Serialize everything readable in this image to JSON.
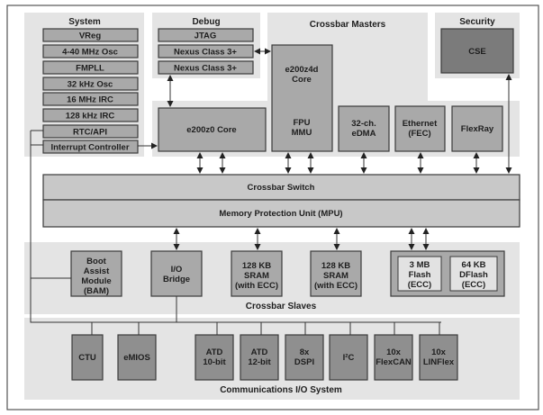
{
  "system": {
    "title": "System",
    "items": [
      "VReg",
      "4-40 MHz Osc",
      "FMPLL",
      "32 kHz Osc",
      "16 MHz IRC",
      "128 kHz IRC",
      "RTC/API",
      "Interrupt Controller"
    ]
  },
  "debug": {
    "title": "Debug",
    "items": [
      "JTAG",
      "Nexus Class 3+",
      "Nexus Class 3+"
    ]
  },
  "crossbar_masters": {
    "title": "Crossbar Masters",
    "e200z0": "e200z0 Core",
    "e200z4d_line1": "e200z4d",
    "e200z4d_line2": "Core",
    "e200z4d_line3": "FPU",
    "e200z4d_line4": "MMU",
    "edma_line1": "32-ch.",
    "edma_line2": "eDMA",
    "ethernet_line1": "Ethernet",
    "ethernet_line2": "(FEC)",
    "flexray": "FlexRay"
  },
  "security": {
    "title": "Security",
    "cse": "CSE"
  },
  "crossbar_switch": "Crossbar Switch",
  "mpu": "Memory Protection Unit (MPU)",
  "crossbar_slaves": {
    "title": "Crossbar Slaves",
    "bam": [
      "Boot",
      "Assist",
      "Module",
      "(BAM)"
    ],
    "io_bridge": [
      "I/O",
      "Bridge"
    ],
    "sram1": [
      "128 KB",
      "SRAM",
      "(with ECC)"
    ],
    "sram2": [
      "128 KB",
      "SRAM",
      "(with ECC)"
    ],
    "flash": [
      "3 MB",
      "Flash",
      "(ECC)"
    ],
    "dflash": [
      "64 KB",
      "DFlash",
      "(ECC)"
    ]
  },
  "comm_io": {
    "title": "Communications I/O System",
    "ctu": "CTU",
    "emios": "eMIOS",
    "atd10": [
      "ATD",
      "10-bit"
    ],
    "atd12": [
      "ATD",
      "12-bit"
    ],
    "dspi": [
      "8x",
      "DSPI"
    ],
    "i2c": "I²C",
    "flexcan": [
      "10x",
      "FlexCAN"
    ],
    "linflex": [
      "10x",
      "LINFlex"
    ]
  }
}
